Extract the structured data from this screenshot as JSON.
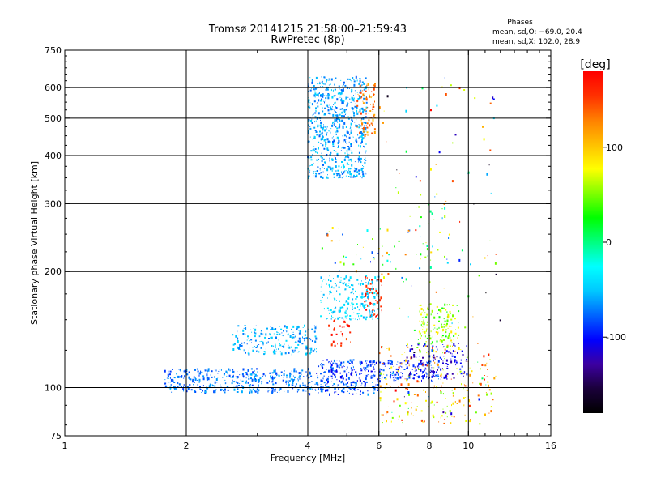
{
  "chart_data": {
    "type": "scatter",
    "title": "Tromsø 20141215 21:58:00–21:59:43",
    "subtitle": "RwPretec (8p)",
    "xlabel": "Frequency [MHz]",
    "ylabel": "Stationary phase Virtual Height [km]",
    "x_scale": "log",
    "y_scale": "log",
    "xlim": [
      1,
      16
    ],
    "ylim": [
      75,
      750
    ],
    "x_ticks": [
      1,
      2,
      4,
      6,
      8,
      10,
      16
    ],
    "y_ticks": [
      75,
      100,
      200,
      300,
      400,
      500,
      600,
      750
    ],
    "x_gridlines": [
      2,
      4,
      6,
      8,
      10
    ],
    "y_gridlines": [
      100,
      200,
      300,
      400,
      500,
      600
    ],
    "grid": true,
    "phases": {
      "title": "Phases",
      "line1": "mean, sd,O: −69.0, 20.4",
      "line2": "mean, sd,X: 102.0, 28.9"
    },
    "colorbar": {
      "label": "[deg]",
      "range": [
        -180,
        180
      ],
      "ticks": [
        100,
        0,
        -100
      ],
      "palette": [
        "#000000",
        "#1a003a",
        "#3c00a0",
        "#0000ff",
        "#0064ff",
        "#00c8ff",
        "#00ffff",
        "#00ff80",
        "#00ff00",
        "#80ff00",
        "#ffff00",
        "#ffc000",
        "#ff8000",
        "#ff3000",
        "#ff0000"
      ]
    },
    "clusters": [
      {
        "freq": [
          4.0,
          5.6
        ],
        "height": [
          350,
          640
        ],
        "phase": [
          -80,
          -40
        ],
        "count": 700
      },
      {
        "freq": [
          5.3,
          5.9
        ],
        "height": [
          450,
          620
        ],
        "phase": [
          100,
          160
        ],
        "count": 90
      },
      {
        "freq": [
          1.75,
          4.1
        ],
        "height": [
          97,
          112
        ],
        "phase": [
          -90,
          -55
        ],
        "count": 400
      },
      {
        "freq": [
          4.0,
          6.0
        ],
        "height": [
          96,
          104
        ],
        "phase": [
          -100,
          -60
        ],
        "count": 120
      },
      {
        "freq": [
          4.2,
          8.5
        ],
        "height": [
          104,
          118
        ],
        "phase": [
          -110,
          -70
        ],
        "count": 300
      },
      {
        "freq": [
          2.6,
          4.2
        ],
        "height": [
          122,
          145
        ],
        "phase": [
          -80,
          -40
        ],
        "count": 220
      },
      {
        "freq": [
          4.3,
          6.0
        ],
        "height": [
          150,
          195
        ],
        "phase": [
          -60,
          -30
        ],
        "count": 220
      },
      {
        "freq": [
          5.5,
          6.1
        ],
        "height": [
          150,
          195
        ],
        "phase": [
          150,
          180
        ],
        "count": 50
      },
      {
        "freq": [
          4.5,
          5.1
        ],
        "height": [
          128,
          150
        ],
        "phase": [
          140,
          180
        ],
        "count": 30
      },
      {
        "freq": [
          6.0,
          11.5
        ],
        "height": [
          80,
          130
        ],
        "phase": [
          40,
          160
        ],
        "count": 220
      },
      {
        "freq": [
          7.0,
          10.0
        ],
        "height": [
          105,
          130
        ],
        "phase": [
          -130,
          -90
        ],
        "count": 120
      },
      {
        "freq": [
          7.5,
          9.5
        ],
        "height": [
          130,
          165
        ],
        "phase": [
          20,
          90
        ],
        "count": 140
      },
      {
        "freq": [
          4.3,
          7.5
        ],
        "height": [
          200,
          260
        ],
        "phase": [
          -100,
          150
        ],
        "count": 40
      },
      {
        "freq": [
          7.5,
          9.0
        ],
        "height": [
          200,
          300
        ],
        "phase": [
          -100,
          110
        ],
        "count": 30
      },
      {
        "freq": [
          6.0,
          12.0
        ],
        "height": [
          80,
          650
        ],
        "phase": [
          -180,
          180
        ],
        "count": 120
      }
    ]
  }
}
